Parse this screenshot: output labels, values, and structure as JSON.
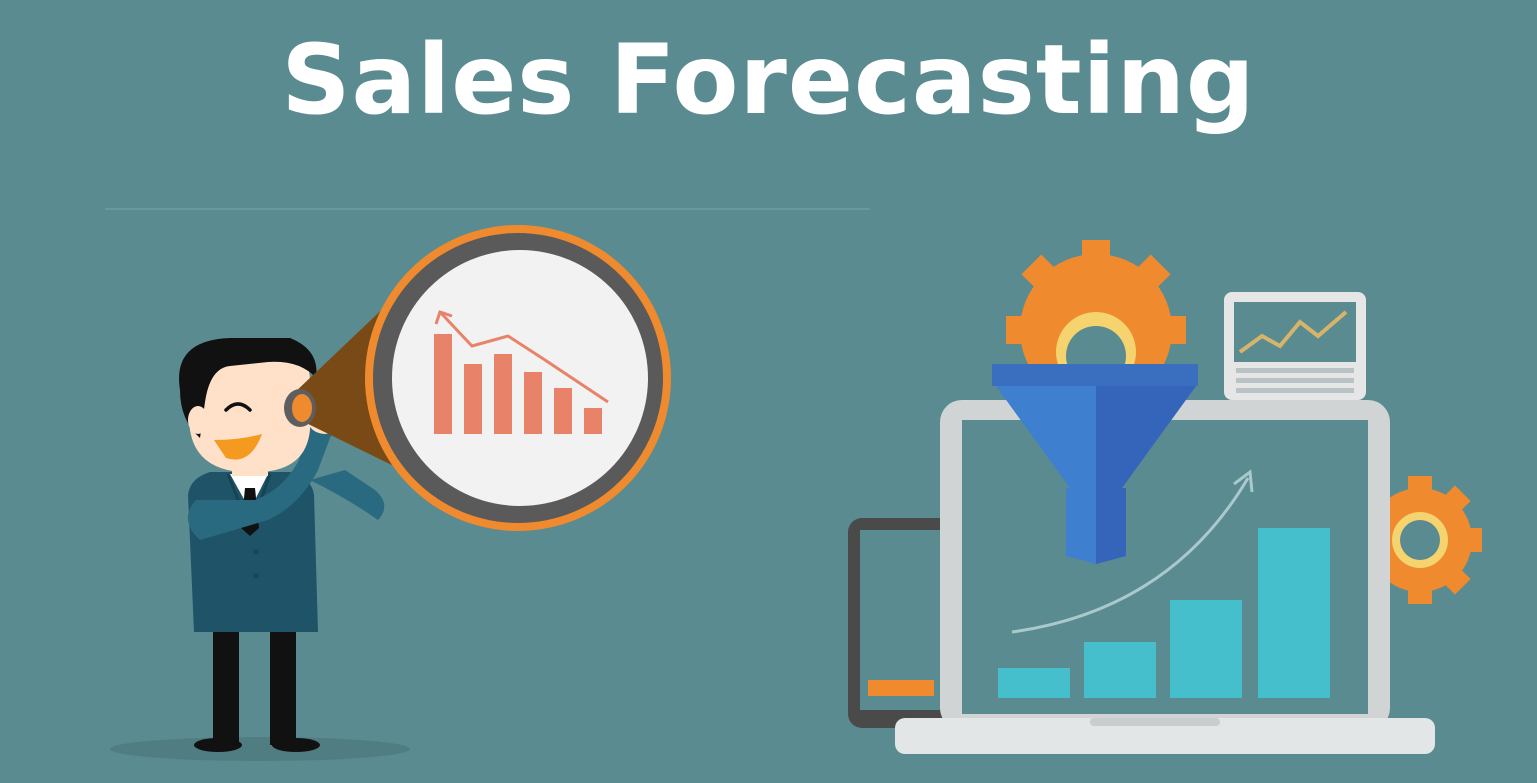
{
  "title": "Sales Forecasting",
  "colors": {
    "background": "#5a8b90",
    "accent_orange": "#f08a2e",
    "bar_salmon": "#e8836a",
    "bar_teal": "#45bfcc",
    "funnel_blue": "#3f7fd0",
    "suit": "#1f5468",
    "screen_gray": "#d0d4d5"
  },
  "illustration": {
    "left": "businessman-with-telescope",
    "left_chart_trend": "declining",
    "right": "laptop-funnel-gears",
    "right_chart_trend": "rising"
  }
}
